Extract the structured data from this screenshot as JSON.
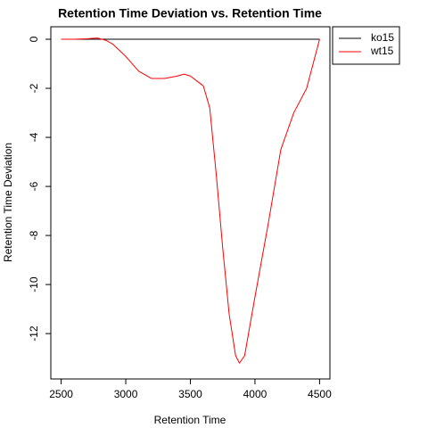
{
  "chart_data": {
    "type": "line",
    "title": "Retention Time Deviation vs. Retention Time",
    "xlabel": "Retention Time",
    "ylabel": "Retention Time Deviation",
    "x": [
      2500,
      2600,
      2700,
      2780,
      2850,
      2900,
      3000,
      3100,
      3200,
      3300,
      3400,
      3450,
      3500,
      3550,
      3600,
      3650,
      3700,
      3750,
      3800,
      3850,
      3880,
      3920,
      4000,
      4100,
      4200,
      4300,
      4400,
      4450,
      4500
    ],
    "series": [
      {
        "name": "ko15",
        "color": "#000000",
        "values": [
          0,
          0,
          0,
          0,
          0,
          0,
          0,
          0,
          0,
          0,
          0,
          0,
          0,
          0,
          0,
          0,
          0,
          0,
          0,
          0,
          0,
          0,
          0,
          0,
          0,
          0,
          0,
          0,
          0
        ]
      },
      {
        "name": "wt15",
        "color": "#ff0000",
        "values": [
          0,
          0,
          0.02,
          0.05,
          -0.05,
          -0.2,
          -0.7,
          -1.3,
          -1.6,
          -1.6,
          -1.5,
          -1.42,
          -1.5,
          -1.7,
          -1.9,
          -2.8,
          -5.5,
          -8.5,
          -11.2,
          -12.9,
          -13.2,
          -12.9,
          -10.5,
          -7.6,
          -4.5,
          -3.0,
          -2.0,
          -1.0,
          0
        ]
      }
    ],
    "xlim": [
      2420,
      4580
    ],
    "xticks": [
      2500,
      3000,
      3500,
      4000,
      4500
    ],
    "ylim": [
      -13.85,
      0.51
    ],
    "yticks": [
      0,
      -2,
      -4,
      -6,
      -8,
      -10,
      -12
    ],
    "legend": "outside-right"
  }
}
